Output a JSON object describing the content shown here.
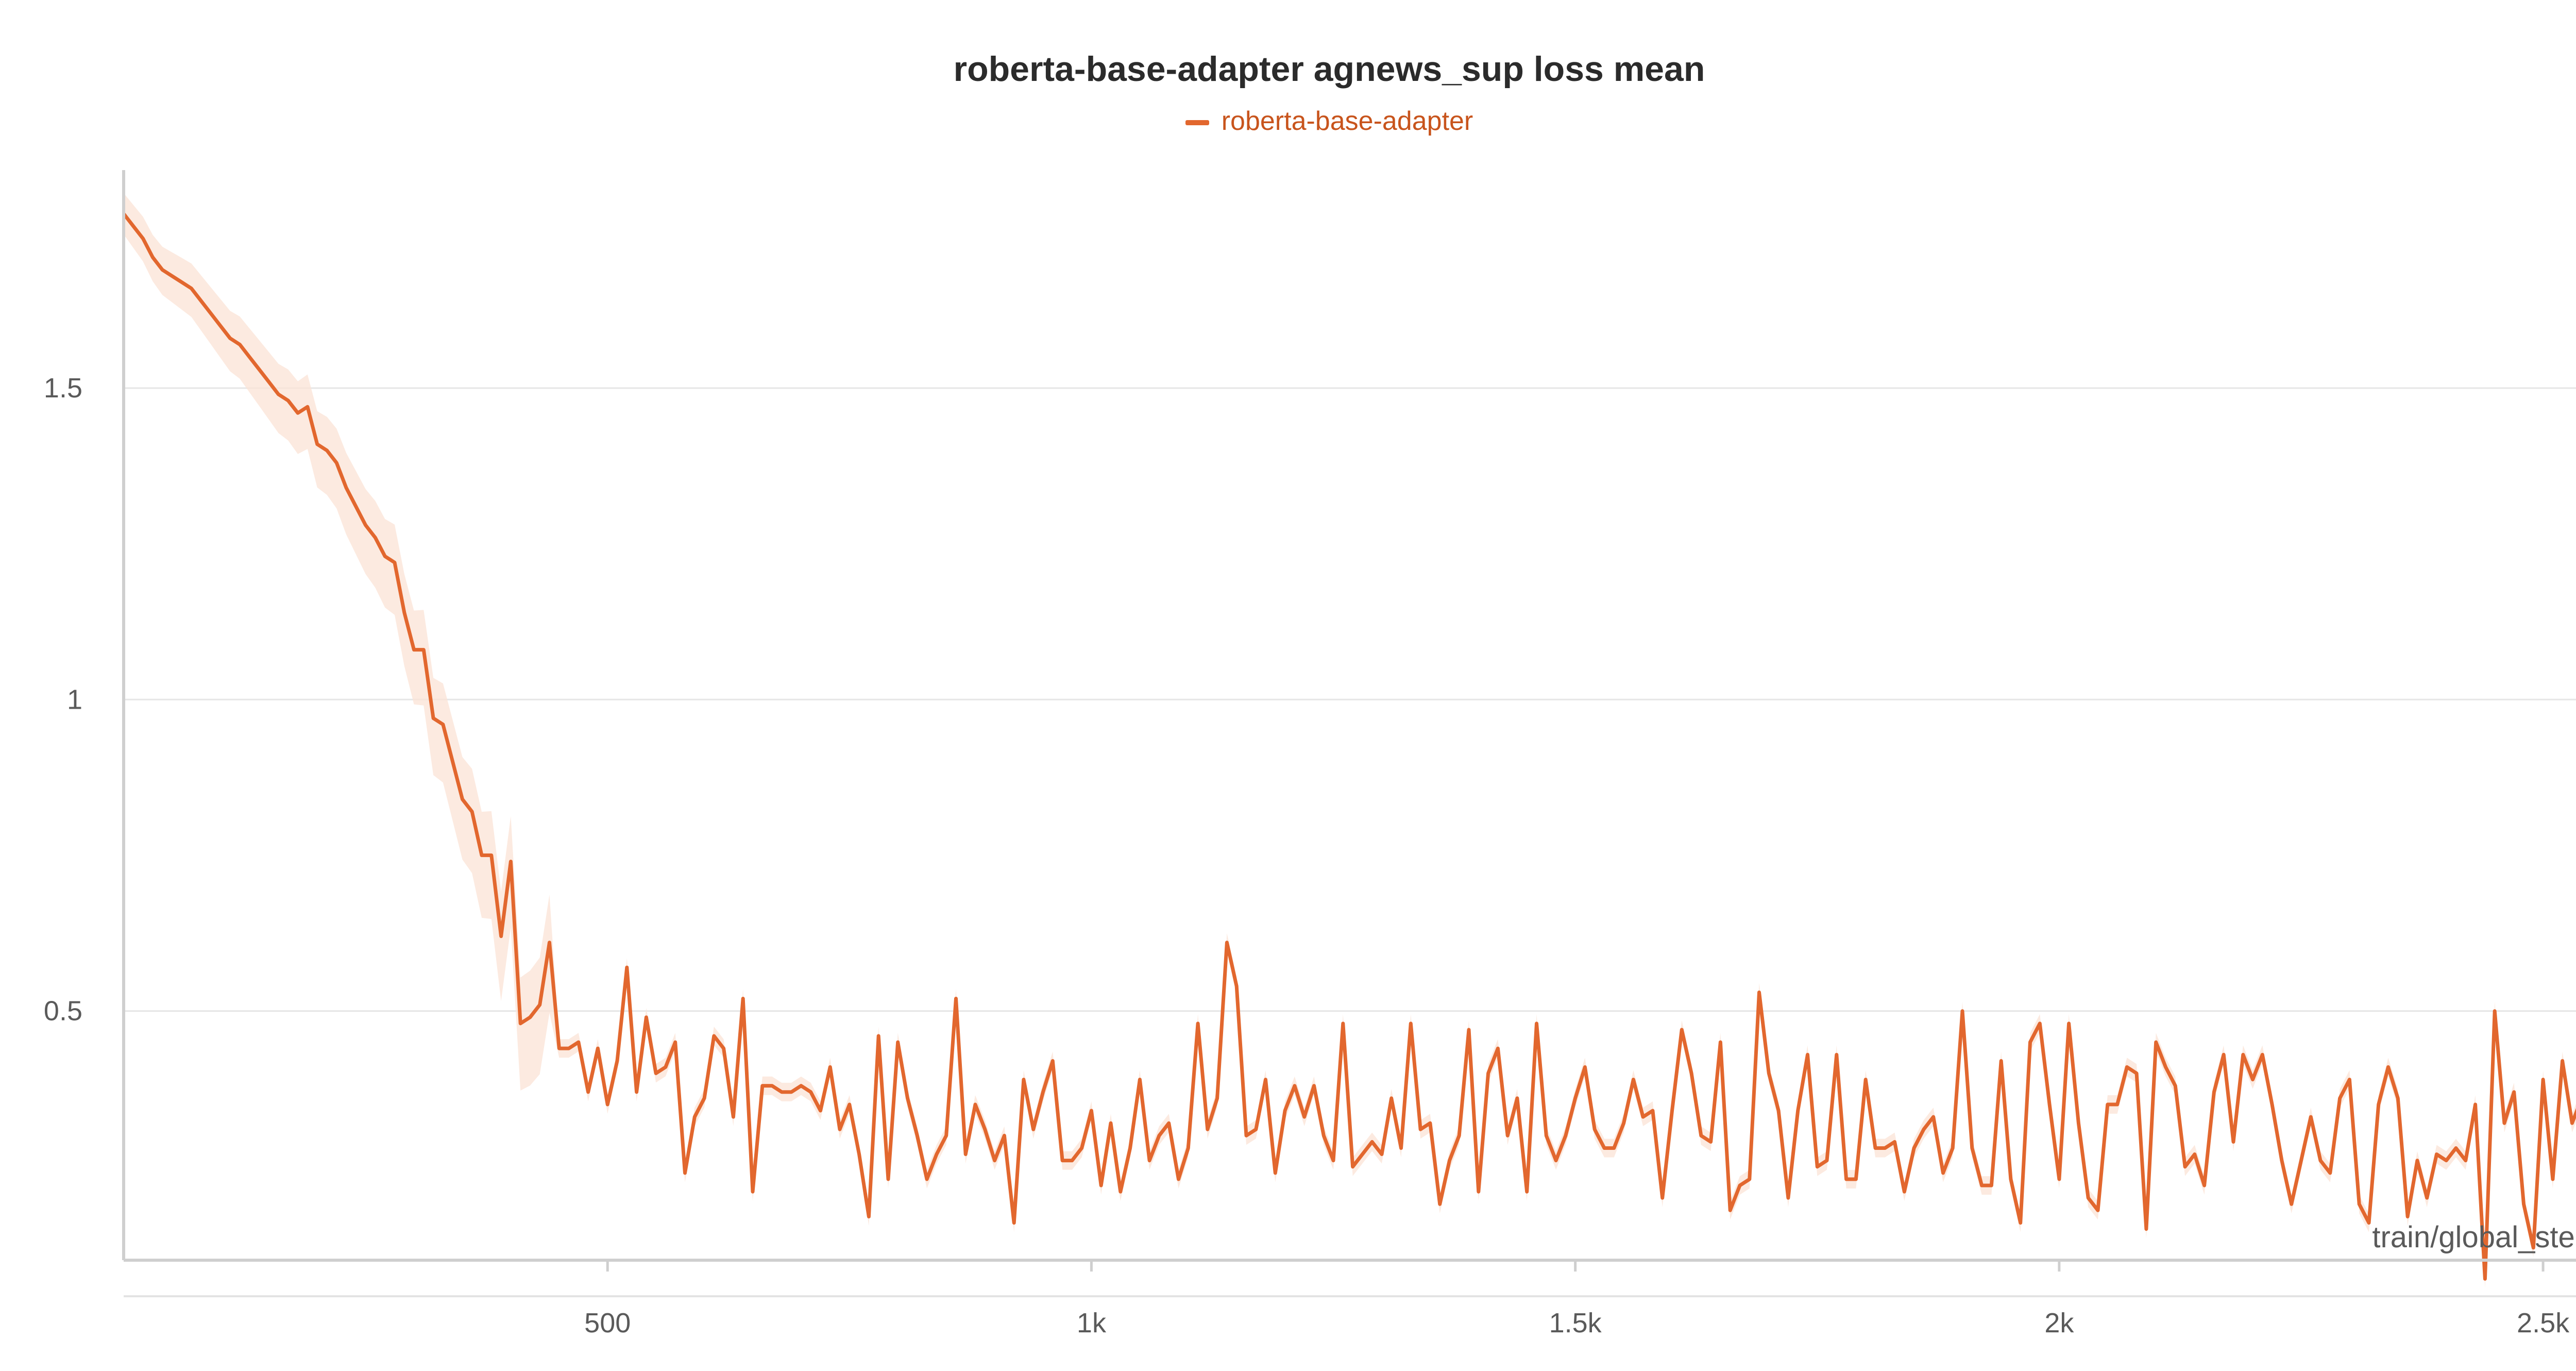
{
  "chart_data": {
    "type": "line",
    "title": "roberta-base-adapter agnews_sup loss mean",
    "xlabel": "train/global_step",
    "ylabel": "",
    "xlim": [
      0,
      2550
    ],
    "ylim": [
      0.1,
      1.85
    ],
    "x_ticks": [
      {
        "value": 500,
        "label": "500"
      },
      {
        "value": 1000,
        "label": "1k"
      },
      {
        "value": 1500,
        "label": "1.5k"
      },
      {
        "value": 2000,
        "label": "2k"
      },
      {
        "value": 2500,
        "label": "2.5k"
      }
    ],
    "y_ticks": [
      {
        "value": 0.5,
        "label": "0.5"
      },
      {
        "value": 1,
        "label": "1"
      },
      {
        "value": 1.5,
        "label": "1.5"
      }
    ],
    "grid": true,
    "legend_position": "top-center",
    "series": [
      {
        "name": "roberta-base-adapter",
        "color": "#e2672e",
        "band_color": "#fbe3d6",
        "x_start": 0,
        "x_step": 10,
        "values": [
          1.78,
          1.76,
          1.74,
          1.71,
          1.69,
          1.68,
          1.67,
          1.66,
          1.64,
          1.62,
          1.6,
          1.58,
          1.57,
          1.55,
          1.53,
          1.51,
          1.49,
          1.48,
          1.46,
          1.47,
          1.41,
          1.4,
          1.38,
          1.34,
          1.31,
          1.28,
          1.26,
          1.23,
          1.22,
          1.14,
          1.08,
          1.08,
          0.97,
          0.96,
          0.9,
          0.84,
          0.82,
          0.75,
          0.75,
          0.62,
          0.74,
          0.48,
          0.49,
          0.51,
          0.61,
          0.44,
          0.44,
          0.45,
          0.37,
          0.44,
          0.35,
          0.42,
          0.57,
          0.37,
          0.49,
          0.4,
          0.41,
          0.45,
          0.24,
          0.33,
          0.36,
          0.46,
          0.44,
          0.33,
          0.52,
          0.21,
          0.38,
          0.38,
          0.37,
          0.37,
          0.38,
          0.37,
          0.34,
          0.41,
          0.31,
          0.35,
          0.27,
          0.17,
          0.46,
          0.23,
          0.45,
          0.36,
          0.3,
          0.23,
          0.27,
          0.3,
          0.52,
          0.27,
          0.35,
          0.31,
          0.26,
          0.3,
          0.16,
          0.39,
          0.31,
          0.37,
          0.42,
          0.26,
          0.26,
          0.28,
          0.34,
          0.22,
          0.32,
          0.21,
          0.28,
          0.39,
          0.26,
          0.3,
          0.32,
          0.23,
          0.28,
          0.48,
          0.31,
          0.36,
          0.61,
          0.54,
          0.3,
          0.31,
          0.39,
          0.24,
          0.34,
          0.38,
          0.33,
          0.38,
          0.3,
          0.26,
          0.48,
          0.25,
          0.27,
          0.29,
          0.27,
          0.36,
          0.28,
          0.48,
          0.31,
          0.32,
          0.19,
          0.26,
          0.3,
          0.47,
          0.21,
          0.4,
          0.44,
          0.3,
          0.36,
          0.21,
          0.48,
          0.3,
          0.26,
          0.3,
          0.36,
          0.41,
          0.31,
          0.28,
          0.28,
          0.32,
          0.39,
          0.33,
          0.34,
          0.2,
          0.34,
          0.47,
          0.4,
          0.3,
          0.29,
          0.45,
          0.18,
          0.22,
          0.23,
          0.53,
          0.4,
          0.34,
          0.2,
          0.34,
          0.43,
          0.25,
          0.26,
          0.43,
          0.23,
          0.23,
          0.39,
          0.28,
          0.28,
          0.29,
          0.21,
          0.28,
          0.31,
          0.33,
          0.24,
          0.28,
          0.5,
          0.28,
          0.22,
          0.22,
          0.42,
          0.23,
          0.16,
          0.45,
          0.48,
          0.35,
          0.23,
          0.48,
          0.32,
          0.2,
          0.18,
          0.35,
          0.35,
          0.41,
          0.4,
          0.15,
          0.45,
          0.41,
          0.38,
          0.25,
          0.27,
          0.22,
          0.37,
          0.43,
          0.29,
          0.43,
          0.39,
          0.43,
          0.35,
          0.26,
          0.19,
          0.26,
          0.33,
          0.26,
          0.24,
          0.36,
          0.39,
          0.19,
          0.16,
          0.35,
          0.41,
          0.36,
          0.17,
          0.26,
          0.2,
          0.27,
          0.26,
          0.28,
          0.26,
          0.35,
          0.07,
          0.5,
          0.32,
          0.37,
          0.19,
          0.12,
          0.39,
          0.23,
          0.42,
          0.32,
          0.36,
          0.39,
          0.26,
          0.39,
          0.38,
          0.33,
          0.33,
          0.35
        ]
      }
    ]
  }
}
